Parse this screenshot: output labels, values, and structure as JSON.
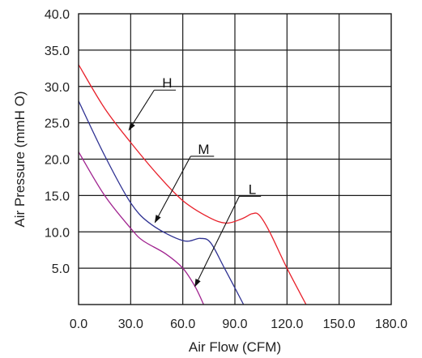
{
  "chart_data": {
    "type": "line",
    "xlabel": "Air Flow (CFM)",
    "ylabel": "Air Pressure (mmH O)",
    "xlim": [
      0,
      180
    ],
    "ylim": [
      0,
      40
    ],
    "x_ticks": [
      "0.0",
      "30.0",
      "60.0",
      "90.0",
      "120.0",
      "150.0",
      "180.0"
    ],
    "y_ticks": [
      "5.0",
      "10.0",
      "15.0",
      "20.0",
      "25.0",
      "30.0",
      "35.0",
      "40.0"
    ],
    "grid": true,
    "series": [
      {
        "name": "H",
        "color": "#e8202a",
        "points": [
          [
            0,
            33
          ],
          [
            15,
            27
          ],
          [
            30,
            22.3
          ],
          [
            45,
            18
          ],
          [
            60,
            14.3
          ],
          [
            75,
            12
          ],
          [
            85,
            11.2
          ],
          [
            94,
            11.8
          ],
          [
            100,
            12.5
          ],
          [
            104,
            12.3
          ],
          [
            110,
            10
          ],
          [
            120,
            5
          ],
          [
            131,
            0
          ]
        ]
      },
      {
        "name": "M",
        "color": "#2e3192",
        "points": [
          [
            0,
            28
          ],
          [
            15,
            20.5
          ],
          [
            30,
            14
          ],
          [
            42,
            11
          ],
          [
            60,
            8.8
          ],
          [
            70,
            9.1
          ],
          [
            76,
            8.5
          ],
          [
            84,
            5
          ],
          [
            95,
            0
          ]
        ]
      },
      {
        "name": "L",
        "color": "#a0228f",
        "points": [
          [
            0,
            21
          ],
          [
            15,
            15
          ],
          [
            30,
            10.5
          ],
          [
            37,
            8.8
          ],
          [
            50,
            7
          ],
          [
            60,
            5
          ],
          [
            67,
            2.5
          ],
          [
            72,
            0
          ]
        ]
      }
    ],
    "callouts": [
      {
        "series": "H",
        "text": "H",
        "label_at": [
          51,
          29.5
        ],
        "shelf_to": [
          56,
          29.5
        ],
        "arrow_to": [
          29,
          24
        ]
      },
      {
        "series": "M",
        "text": "M",
        "label_at": [
          72,
          20.4
        ],
        "shelf_to": [
          78,
          20.4
        ],
        "arrow_to": [
          44,
          11.3
        ]
      },
      {
        "series": "L",
        "text": "L",
        "label_at": [
          100,
          14.9
        ],
        "shelf_to": [
          105,
          14.9
        ],
        "arrow_to": [
          67,
          2.5
        ]
      }
    ]
  }
}
